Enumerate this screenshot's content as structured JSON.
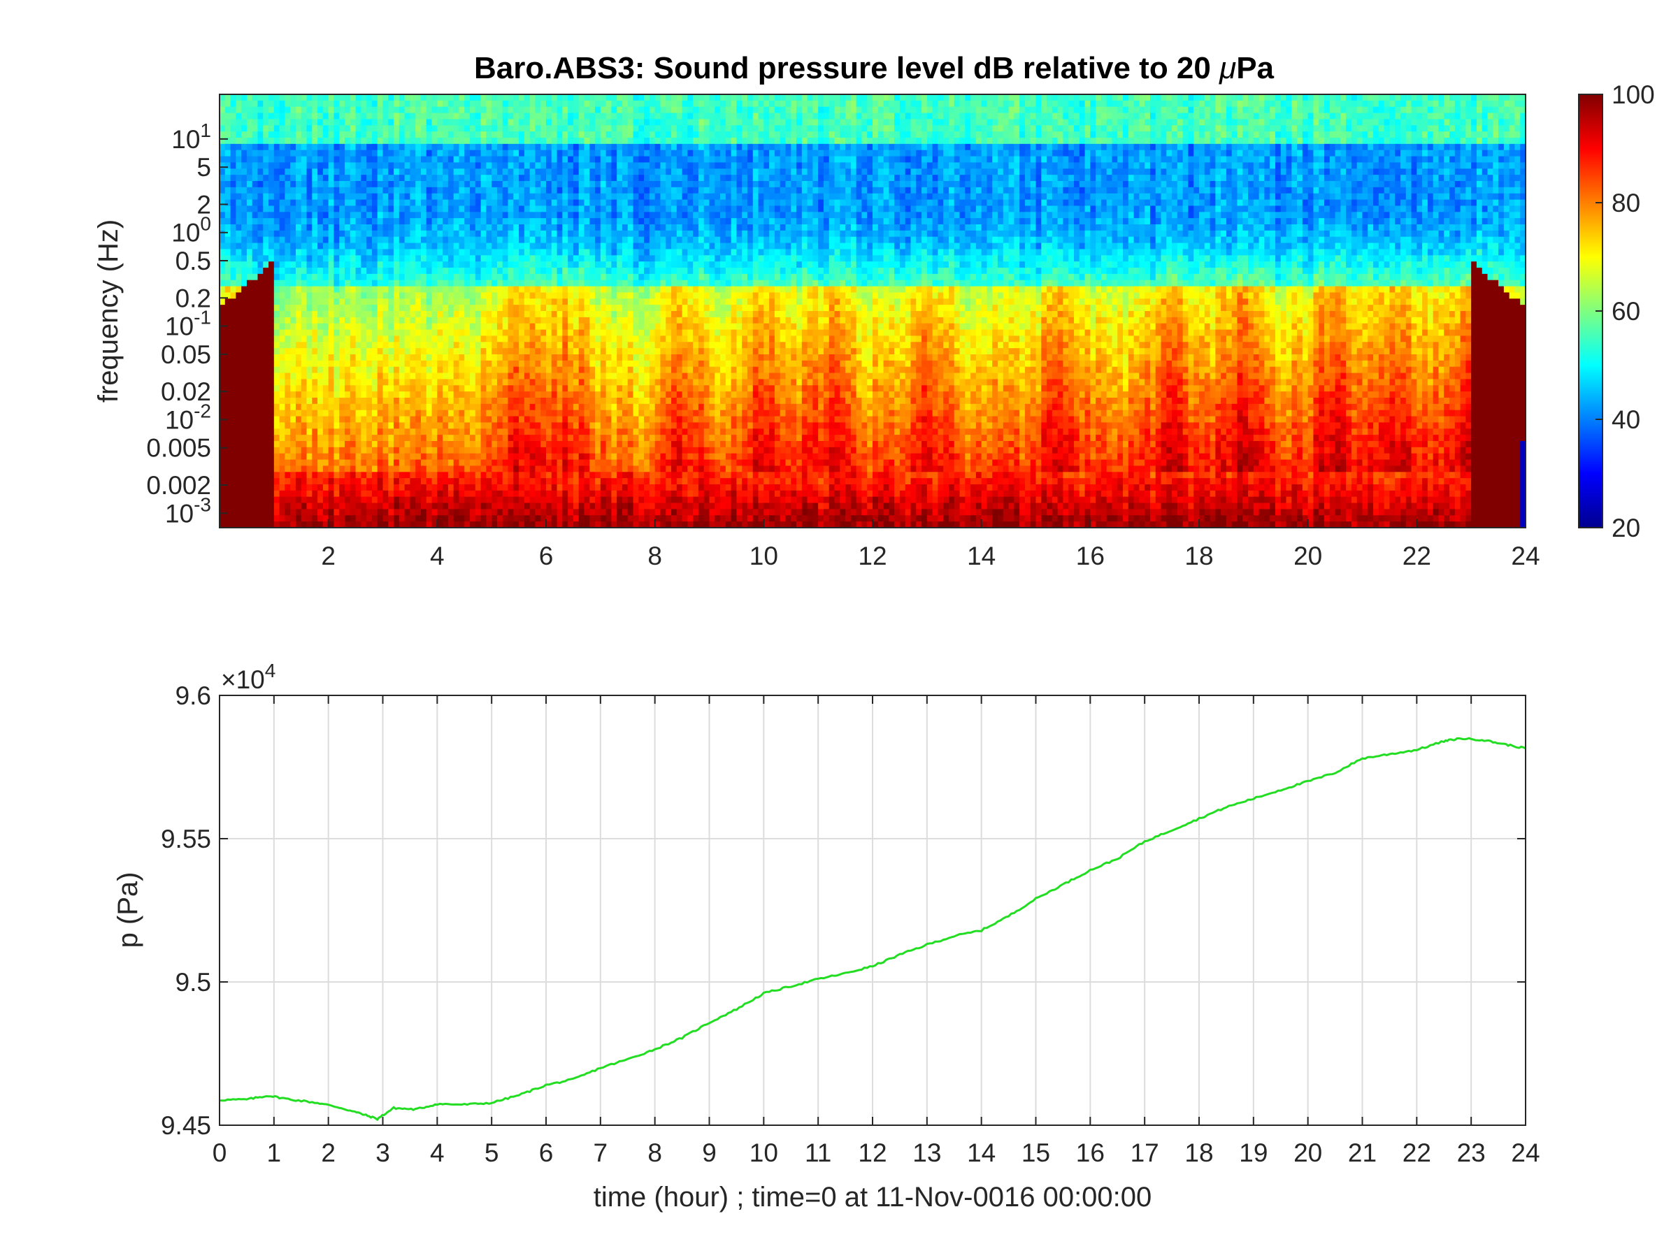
{
  "chart_data": [
    {
      "type": "heatmap",
      "title_main": "Baro.ABS3: Sound pressure level dB relative to 20 ",
      "title_mu": "μ",
      "title_unit": "Pa",
      "ylabel": "frequency (Hz)",
      "xlabel": "",
      "xlim": [
        0,
        24
      ],
      "x_ticks": [
        2,
        4,
        6,
        8,
        10,
        12,
        14,
        16,
        18,
        20,
        22,
        24
      ],
      "y_scale": "log",
      "ylim": [
        0.0007,
        30
      ],
      "y_ticks": [
        {
          "value": 10,
          "base": "10",
          "exp": "1"
        },
        {
          "value": 5,
          "label": "5"
        },
        {
          "value": 2,
          "label": "2"
        },
        {
          "value": 1,
          "base": "10",
          "exp": "0"
        },
        {
          "value": 0.5,
          "label": "0.5"
        },
        {
          "value": 0.2,
          "label": "0.2"
        },
        {
          "value": 0.1,
          "base": "10",
          "exp": "-1"
        },
        {
          "value": 0.05,
          "label": "0.05"
        },
        {
          "value": 0.02,
          "label": "0.02"
        },
        {
          "value": 0.01,
          "base": "10",
          "exp": "-2"
        },
        {
          "value": 0.005,
          "label": "0.005"
        },
        {
          "value": 0.002,
          "label": "0.002"
        },
        {
          "value": 0.001,
          "base": "10",
          "exp": "-3"
        }
      ],
      "colorbar": {
        "colormap": "jet",
        "clim": [
          20,
          100
        ],
        "ticks": [
          20,
          40,
          60,
          80,
          100
        ]
      },
      "activity_peaks_hours": [
        0.3,
        5.5,
        6.4,
        8.5,
        10.0,
        11.2,
        13.0,
        15.5,
        17.5,
        18.8,
        20.5,
        21.6,
        23.0
      ]
    },
    {
      "type": "line",
      "title": "",
      "xlabel": "time (hour) ; time=0 at 11-Nov-0016 00:00:00",
      "ylabel": "p (Pa)",
      "y_multiplier_base": "×10",
      "y_multiplier_exp": "4",
      "xlim": [
        0,
        24
      ],
      "ylim": [
        94500,
        96000
      ],
      "x_ticks": [
        0,
        1,
        2,
        3,
        4,
        5,
        6,
        7,
        8,
        9,
        10,
        11,
        12,
        13,
        14,
        15,
        16,
        17,
        18,
        19,
        20,
        21,
        22,
        23,
        24
      ],
      "y_ticks": [
        {
          "value": 94500,
          "label": "9.45"
        },
        {
          "value": 95000,
          "label": "9.5"
        },
        {
          "value": 95500,
          "label": "9.55"
        },
        {
          "value": 96000,
          "label": "9.6"
        }
      ],
      "grid": true,
      "series": [
        {
          "color": "#22dd22",
          "x": [
            0,
            0.5,
            0.9,
            1.3,
            1.8,
            2.2,
            2.6,
            2.9,
            3.2,
            3.6,
            4.0,
            4.5,
            5.0,
            5.5,
            6.0,
            6.5,
            7.0,
            7.5,
            8.0,
            8.5,
            9.0,
            9.5,
            10.0,
            10.5,
            11.0,
            11.5,
            12.0,
            12.5,
            13.0,
            13.5,
            14.0,
            14.5,
            15.0,
            15.5,
            16.0,
            16.5,
            17.0,
            17.5,
            18.0,
            18.5,
            19.0,
            19.5,
            20.0,
            20.5,
            21.0,
            21.5,
            22.0,
            22.5,
            22.8,
            23.2,
            23.6,
            24.0
          ],
          "y": [
            94588,
            94590,
            94603,
            94590,
            94578,
            94562,
            94540,
            94522,
            94560,
            94555,
            94574,
            94572,
            94578,
            94605,
            94640,
            94660,
            94700,
            94730,
            94765,
            94805,
            94858,
            94905,
            94960,
            94985,
            95010,
            95030,
            95055,
            95095,
            95130,
            95160,
            95180,
            95230,
            95290,
            95340,
            95390,
            95430,
            95490,
            95530,
            95570,
            95610,
            95640,
            95670,
            95700,
            95730,
            95780,
            95795,
            95810,
            95840,
            95850,
            95845,
            95830,
            95815
          ]
        }
      ]
    }
  ]
}
